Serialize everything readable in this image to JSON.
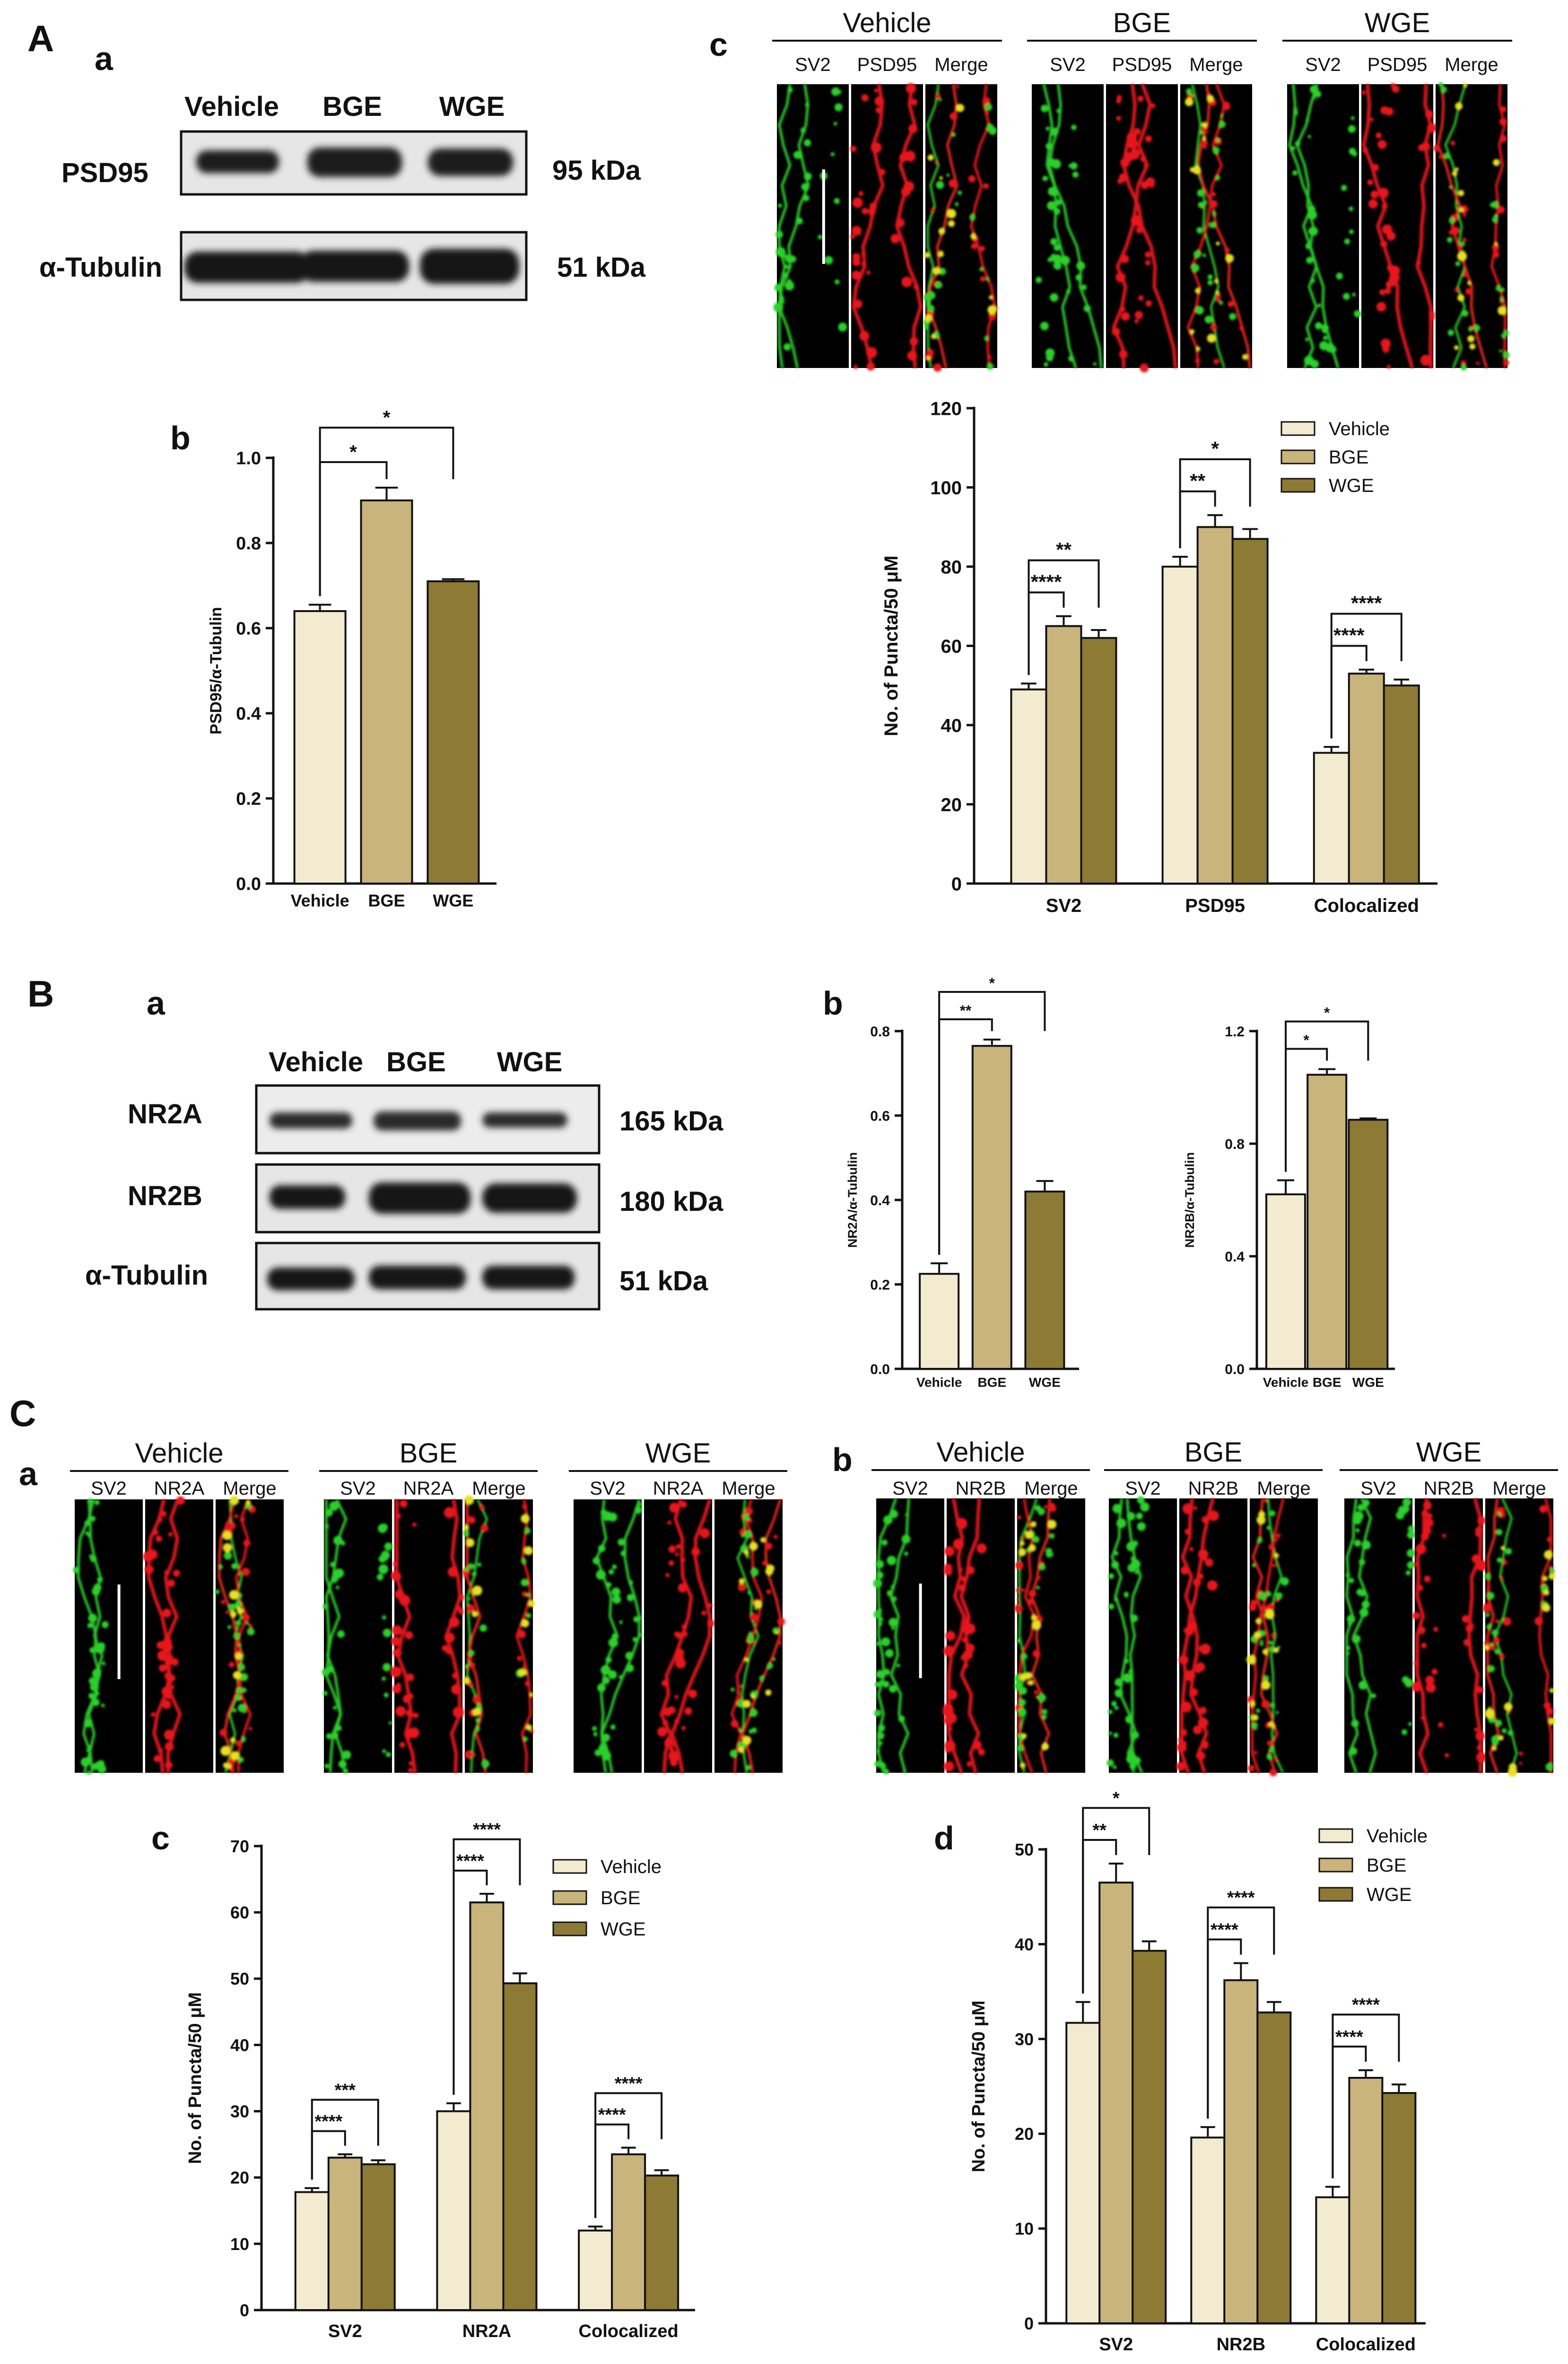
{
  "colors": {
    "vehicle": "#f2ebcf",
    "bge": "#c9b47c",
    "wge": "#8c7a35",
    "green": "#2bd12b",
    "red": "#e8141d",
    "blot_band": "#1a1a1a",
    "blot_bg": "#e9e9e9"
  },
  "panel_letters": {
    "A": "A",
    "B": "B",
    "C": "C",
    "Aa": "a",
    "Ab": "b",
    "Ac": "c",
    "Ba": "a",
    "Bb": "b",
    "Ca": "a",
    "Cb": "b",
    "Cc": "c",
    "Cd": "d"
  },
  "blot_A": {
    "lanes": [
      "Vehicle",
      "BGE",
      "WGE"
    ],
    "rows": [
      {
        "name": "PSD95",
        "size": "95 kDa"
      },
      {
        "name": "α-Tubulin",
        "size": "51 kDa"
      }
    ]
  },
  "blot_B": {
    "lanes": [
      "Vehicle",
      "BGE",
      "WGE"
    ],
    "rows": [
      {
        "name": "NR2A",
        "size": "165 kDa"
      },
      {
        "name": "NR2B",
        "size": "180 kDa"
      },
      {
        "name": "α-Tubulin",
        "size": "51 kDa"
      }
    ]
  },
  "micro_A": {
    "groups": [
      {
        "title": "Vehicle",
        "channels": [
          "SV2",
          "PSD95",
          "Merge"
        ]
      },
      {
        "title": "BGE",
        "channels": [
          "SV2",
          "PSD95",
          "Merge"
        ]
      },
      {
        "title": "WGE",
        "channels": [
          "SV2",
          "PSD95",
          "Merge"
        ]
      }
    ]
  },
  "micro_Ca": {
    "groups": [
      {
        "title": "Vehicle",
        "channels": [
          "SV2",
          "NR2A",
          "Merge"
        ]
      },
      {
        "title": "BGE",
        "channels": [
          "SV2",
          "NR2A",
          "Merge"
        ]
      },
      {
        "title": "WGE",
        "channels": [
          "SV2",
          "NR2A",
          "Merge"
        ]
      }
    ]
  },
  "micro_Cb": {
    "groups": [
      {
        "title": "Vehicle",
        "channels": [
          "SV2",
          "NR2B",
          "Merge"
        ]
      },
      {
        "title": "BGE",
        "channels": [
          "SV2",
          "NR2B",
          "Merge"
        ]
      },
      {
        "title": "WGE",
        "channels": [
          "SV2",
          "NR2B",
          "Merge"
        ]
      }
    ]
  },
  "chart_data": [
    {
      "id": "Ab",
      "type": "bar",
      "categories": [
        "Vehicle",
        "BGE",
        "WGE"
      ],
      "values": [
        0.64,
        0.9,
        0.71
      ],
      "errors": [
        0.015,
        0.03,
        0.005
      ],
      "ylabel": "PSD95/α-Tubulin",
      "ylim": [
        0,
        1.0
      ],
      "yticks": [
        "0.0",
        "0.2",
        "0.4",
        "0.6",
        "0.8",
        "1.0"
      ],
      "significance": [
        {
          "from": 0,
          "to": 1,
          "label": "*"
        },
        {
          "from": 0,
          "to": 2,
          "label": "*"
        }
      ]
    },
    {
      "id": "Ac",
      "type": "bar",
      "categories": [
        "SV2",
        "PSD95",
        "Colocalized"
      ],
      "series": [
        {
          "name": "Vehicle",
          "values": [
            49,
            80,
            33
          ],
          "errors": [
            1.5,
            2.5,
            1.5
          ]
        },
        {
          "name": "BGE",
          "values": [
            65,
            90,
            53
          ],
          "errors": [
            2.5,
            3,
            1
          ]
        },
        {
          "name": "WGE",
          "values": [
            62,
            87,
            50
          ],
          "errors": [
            2,
            2.5,
            1.5
          ]
        }
      ],
      "ylabel": "No. of Puncta/50 μM",
      "ylim": [
        0,
        120
      ],
      "yticks": [
        "0",
        "20",
        "40",
        "60",
        "80",
        "100",
        "120"
      ],
      "legend": "top-right",
      "significance": [
        {
          "cat": 0,
          "from": 0,
          "to": 1,
          "label": "****"
        },
        {
          "cat": 0,
          "from": 0,
          "to": 2,
          "label": "**"
        },
        {
          "cat": 1,
          "from": 0,
          "to": 1,
          "label": "**"
        },
        {
          "cat": 1,
          "from": 0,
          "to": 2,
          "label": "*"
        },
        {
          "cat": 2,
          "from": 0,
          "to": 1,
          "label": "****"
        },
        {
          "cat": 2,
          "from": 0,
          "to": 2,
          "label": "****"
        }
      ]
    },
    {
      "id": "Bb1",
      "type": "bar",
      "categories": [
        "Vehicle",
        "BGE",
        "WGE"
      ],
      "values": [
        0.225,
        0.765,
        0.42
      ],
      "errors": [
        0.025,
        0.015,
        0.025
      ],
      "ylabel": "NR2A/α-Tubulin",
      "ylim": [
        0,
        0.8
      ],
      "yticks": [
        "0.0",
        "0.2",
        "0.4",
        "0.6",
        "0.8"
      ],
      "significance": [
        {
          "from": 0,
          "to": 1,
          "label": "**"
        },
        {
          "from": 0,
          "to": 2,
          "label": "*"
        }
      ]
    },
    {
      "id": "Bb2",
      "type": "bar",
      "categories": [
        "Vehicle",
        "BGE",
        "WGE"
      ],
      "values": [
        0.62,
        1.045,
        0.885
      ],
      "errors": [
        0.05,
        0.02,
        0.005
      ],
      "ylabel": "NR2B/α-Tubulin",
      "ylim": [
        0,
        1.2
      ],
      "yticks": [
        "0.0",
        "0.4",
        "0.8",
        "1.2"
      ],
      "significance": [
        {
          "from": 0,
          "to": 1,
          "label": "*"
        },
        {
          "from": 0,
          "to": 2,
          "label": "*"
        }
      ]
    },
    {
      "id": "Cc",
      "type": "bar",
      "categories": [
        "SV2",
        "NR2A",
        "Colocalized"
      ],
      "series": [
        {
          "name": "Vehicle",
          "values": [
            17.8,
            30,
            12
          ],
          "errors": [
            0.6,
            1.2,
            0.6
          ]
        },
        {
          "name": "BGE",
          "values": [
            23,
            61.5,
            23.5
          ],
          "errors": [
            0.5,
            1.3,
            1
          ]
        },
        {
          "name": "WGE",
          "values": [
            22,
            49.3,
            20.3
          ],
          "errors": [
            0.6,
            1.5,
            0.8
          ]
        }
      ],
      "ylabel": "No. of Puncta/50 μM",
      "ylim": [
        0,
        70
      ],
      "yticks": [
        "0",
        "10",
        "20",
        "30",
        "40",
        "50",
        "60",
        "70"
      ],
      "legend": "top-right",
      "significance": [
        {
          "cat": 0,
          "from": 0,
          "to": 1,
          "label": "****"
        },
        {
          "cat": 0,
          "from": 0,
          "to": 2,
          "label": "***"
        },
        {
          "cat": 1,
          "from": 0,
          "to": 1,
          "label": "****"
        },
        {
          "cat": 1,
          "from": 0,
          "to": 2,
          "label": "****"
        },
        {
          "cat": 2,
          "from": 0,
          "to": 1,
          "label": "****"
        },
        {
          "cat": 2,
          "from": 0,
          "to": 2,
          "label": "****"
        }
      ]
    },
    {
      "id": "Cd",
      "type": "bar",
      "categories": [
        "SV2",
        "NR2B",
        "Colocalized"
      ],
      "series": [
        {
          "name": "Vehicle",
          "values": [
            31.7,
            19.6,
            13.3
          ],
          "errors": [
            2.2,
            1.1,
            1.1
          ]
        },
        {
          "name": "BGE",
          "values": [
            46.5,
            36.2,
            25.9
          ],
          "errors": [
            2,
            1.8,
            0.8
          ]
        },
        {
          "name": "WGE",
          "values": [
            39.3,
            32.8,
            24.3
          ],
          "errors": [
            1,
            1.1,
            0.9
          ]
        }
      ],
      "ylabel": "No. of Puncta/50 μM",
      "ylim": [
        0,
        50
      ],
      "yticks": [
        "0",
        "10",
        "20",
        "30",
        "40",
        "50"
      ],
      "legend": "top-right",
      "significance": [
        {
          "cat": 0,
          "from": 0,
          "to": 1,
          "label": "**"
        },
        {
          "cat": 0,
          "from": 0,
          "to": 2,
          "label": "*"
        },
        {
          "cat": 1,
          "from": 0,
          "to": 1,
          "label": "****"
        },
        {
          "cat": 1,
          "from": 0,
          "to": 2,
          "label": "****"
        },
        {
          "cat": 2,
          "from": 0,
          "to": 1,
          "label": "****"
        },
        {
          "cat": 2,
          "from": 0,
          "to": 2,
          "label": "****"
        }
      ]
    }
  ]
}
